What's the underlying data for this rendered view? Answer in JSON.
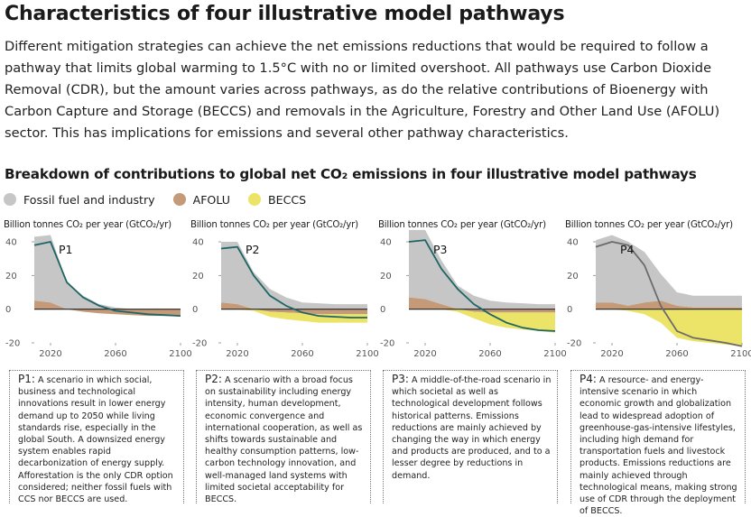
{
  "title": "Characteristics of four illustrative model pathways",
  "intro": "Different mitigation strategies can achieve the net emissions reductions that would be required to follow a pathway that limits global warming to 1.5°C with no or limited overshoot. All pathways use Carbon Dioxide Removal (CDR), but the amount varies across pathways, as do the relative contributions of Bioenergy with Carbon Capture and Storage (BECCS) and removals in the Agriculture, Forestry and Other Land Use (AFOLU) sector. This has implications for emissions and several other pathway characteristics.",
  "subtitle": "Breakdown of contributions to global net CO₂ emissions in four illustrative model pathways",
  "legend": [
    {
      "label": "Fossil fuel and industry",
      "color": "#c6c6c6"
    },
    {
      "label": "AFOLU",
      "color": "#c49a78"
    },
    {
      "label": "BECCS",
      "color": "#ece468"
    }
  ],
  "colors": {
    "net_line": "#1e6566",
    "net_line_p4": "#6b6b6b",
    "axis": "#222222",
    "tick": "#555555"
  },
  "chart_data": [
    {
      "type": "area",
      "title": "P1",
      "ylabel": "Billion tonnes CO₂ per year (GtCO₂/yr)",
      "x_ticks": [
        2020,
        2060,
        2100
      ],
      "y_ticks": [
        40,
        20,
        0,
        -20
      ],
      "xlim": [
        2010,
        2100
      ],
      "ylim": [
        -20,
        40
      ],
      "x": [
        2010,
        2020,
        2030,
        2040,
        2050,
        2060,
        2070,
        2080,
        2090,
        2100
      ],
      "series": [
        {
          "name": "Fossil fuel and industry",
          "values": [
            38,
            40,
            16,
            8,
            3,
            1,
            0,
            0,
            0,
            0
          ]
        },
        {
          "name": "AFOLU",
          "values": [
            5,
            4,
            0,
            -1.5,
            -2.5,
            -3,
            -3.5,
            -4,
            -4,
            -4
          ]
        },
        {
          "name": "BECCS",
          "values": [
            0,
            0,
            0,
            0,
            0,
            0,
            0,
            0,
            0,
            0
          ]
        }
      ],
      "net_values": [
        38,
        40,
        16,
        7,
        2,
        -1,
        -2,
        -3,
        -3.5,
        -4
      ]
    },
    {
      "type": "area",
      "title": "P2",
      "ylabel": "Billion tonnes CO₂ per year (GtCO₂/yr)",
      "x_ticks": [
        2020,
        2060,
        2100
      ],
      "y_ticks": [
        40,
        20,
        0,
        -20
      ],
      "xlim": [
        2010,
        2100
      ],
      "ylim": [
        -20,
        40
      ],
      "x": [
        2010,
        2020,
        2030,
        2040,
        2050,
        2060,
        2070,
        2080,
        2090,
        2100
      ],
      "series": [
        {
          "name": "Fossil fuel and industry",
          "values": [
            36,
            37,
            22,
            12,
            7,
            4,
            3.5,
            3,
            3,
            3
          ]
        },
        {
          "name": "AFOLU",
          "values": [
            4,
            3,
            0,
            -1.5,
            -2,
            -2.5,
            -3,
            -3,
            -3,
            -3
          ]
        },
        {
          "name": "BECCS",
          "values": [
            0,
            0,
            -1,
            -3,
            -4,
            -4.5,
            -5,
            -5,
            -5,
            -5
          ]
        }
      ],
      "net_values": [
        36,
        37,
        20,
        8,
        2,
        -2,
        -4,
        -4.5,
        -5,
        -5
      ]
    },
    {
      "type": "area",
      "title": "P3",
      "ylabel": "Billion tonnes CO₂ per year (GtCO₂/yr)",
      "x_ticks": [
        2020,
        2060,
        2100
      ],
      "y_ticks": [
        40,
        20,
        0,
        -20
      ],
      "xlim": [
        2010,
        2100
      ],
      "ylim": [
        -20,
        40
      ],
      "x": [
        2010,
        2020,
        2030,
        2040,
        2050,
        2060,
        2070,
        2080,
        2090,
        2100
      ],
      "series": [
        {
          "name": "Fossil fuel and industry",
          "values": [
            40,
            41,
            26,
            14,
            8,
            5,
            4,
            3.5,
            3,
            3
          ]
        },
        {
          "name": "AFOLU",
          "values": [
            7,
            6,
            3,
            0,
            -1.5,
            -2,
            -2,
            -2,
            -2,
            -2
          ]
        },
        {
          "name": "BECCS",
          "values": [
            0,
            0,
            0,
            -1.5,
            -4,
            -7,
            -9,
            -10,
            -11,
            -12
          ]
        }
      ],
      "net_values": [
        40,
        41,
        24,
        12,
        3,
        -3,
        -8,
        -11,
        -12.5,
        -13
      ]
    },
    {
      "type": "area",
      "title": "P4",
      "ylabel": "Billion tonnes CO₂ per year (GtCO₂/yr)",
      "x_ticks": [
        2020,
        2060,
        2100
      ],
      "y_ticks": [
        40,
        20,
        0,
        -20
      ],
      "xlim": [
        2010,
        2100
      ],
      "ylim": [
        -20,
        40
      ],
      "x": [
        2010,
        2020,
        2030,
        2040,
        2050,
        2060,
        2070,
        2080,
        2090,
        2100
      ],
      "series": [
        {
          "name": "Fossil fuel and industry",
          "values": [
            37,
            40,
            38,
            30,
            16,
            8,
            7,
            7,
            7,
            7
          ]
        },
        {
          "name": "AFOLU",
          "values": [
            4,
            4,
            2,
            4,
            5,
            2,
            1,
            1,
            1,
            1
          ]
        },
        {
          "name": "BECCS",
          "values": [
            0,
            0,
            -1,
            -3,
            -8,
            -17,
            -19,
            -20,
            -21,
            -22
          ]
        }
      ],
      "net_values": [
        37,
        40,
        38,
        26,
        2,
        -13,
        -17,
        -18.5,
        -20,
        -22
      ]
    }
  ],
  "descriptions": [
    {
      "lead": "P1:",
      "text": " A scenario in which social, business and technological innovations result in lower energy demand up to 2050 while living standards rise, especially in the global South. A downsized energy system enables rapid decarbonization of energy supply. Afforestation is the only CDR option considered; neither fossil fuels with CCS nor BECCS are used."
    },
    {
      "lead": "P2:",
      "text": " A scenario with a broad focus on sustainability including energy intensity, human development, economic convergence and international cooperation, as well as shifts towards sustainable and healthy consumption patterns, low-carbon technology innovation, and well-managed land systems with limited societal acceptability for BECCS."
    },
    {
      "lead": "P3:",
      "text": " A middle-of-the-road scenario in which societal as well as technological development follows historical patterns. Emissions reductions are mainly achieved by changing the way in which energy and products are produced, and to a lesser degree by reductions in demand."
    },
    {
      "lead": "P4:",
      "text": " A resource- and energy-intensive scenario in which economic growth and globalization lead to widespread adoption of greenhouse-gas-intensive lifestyles, including high demand for transportation fuels and livestock products. Emissions reductions are mainly achieved through technological means, making strong use of CDR through the deployment of BECCS."
    }
  ]
}
